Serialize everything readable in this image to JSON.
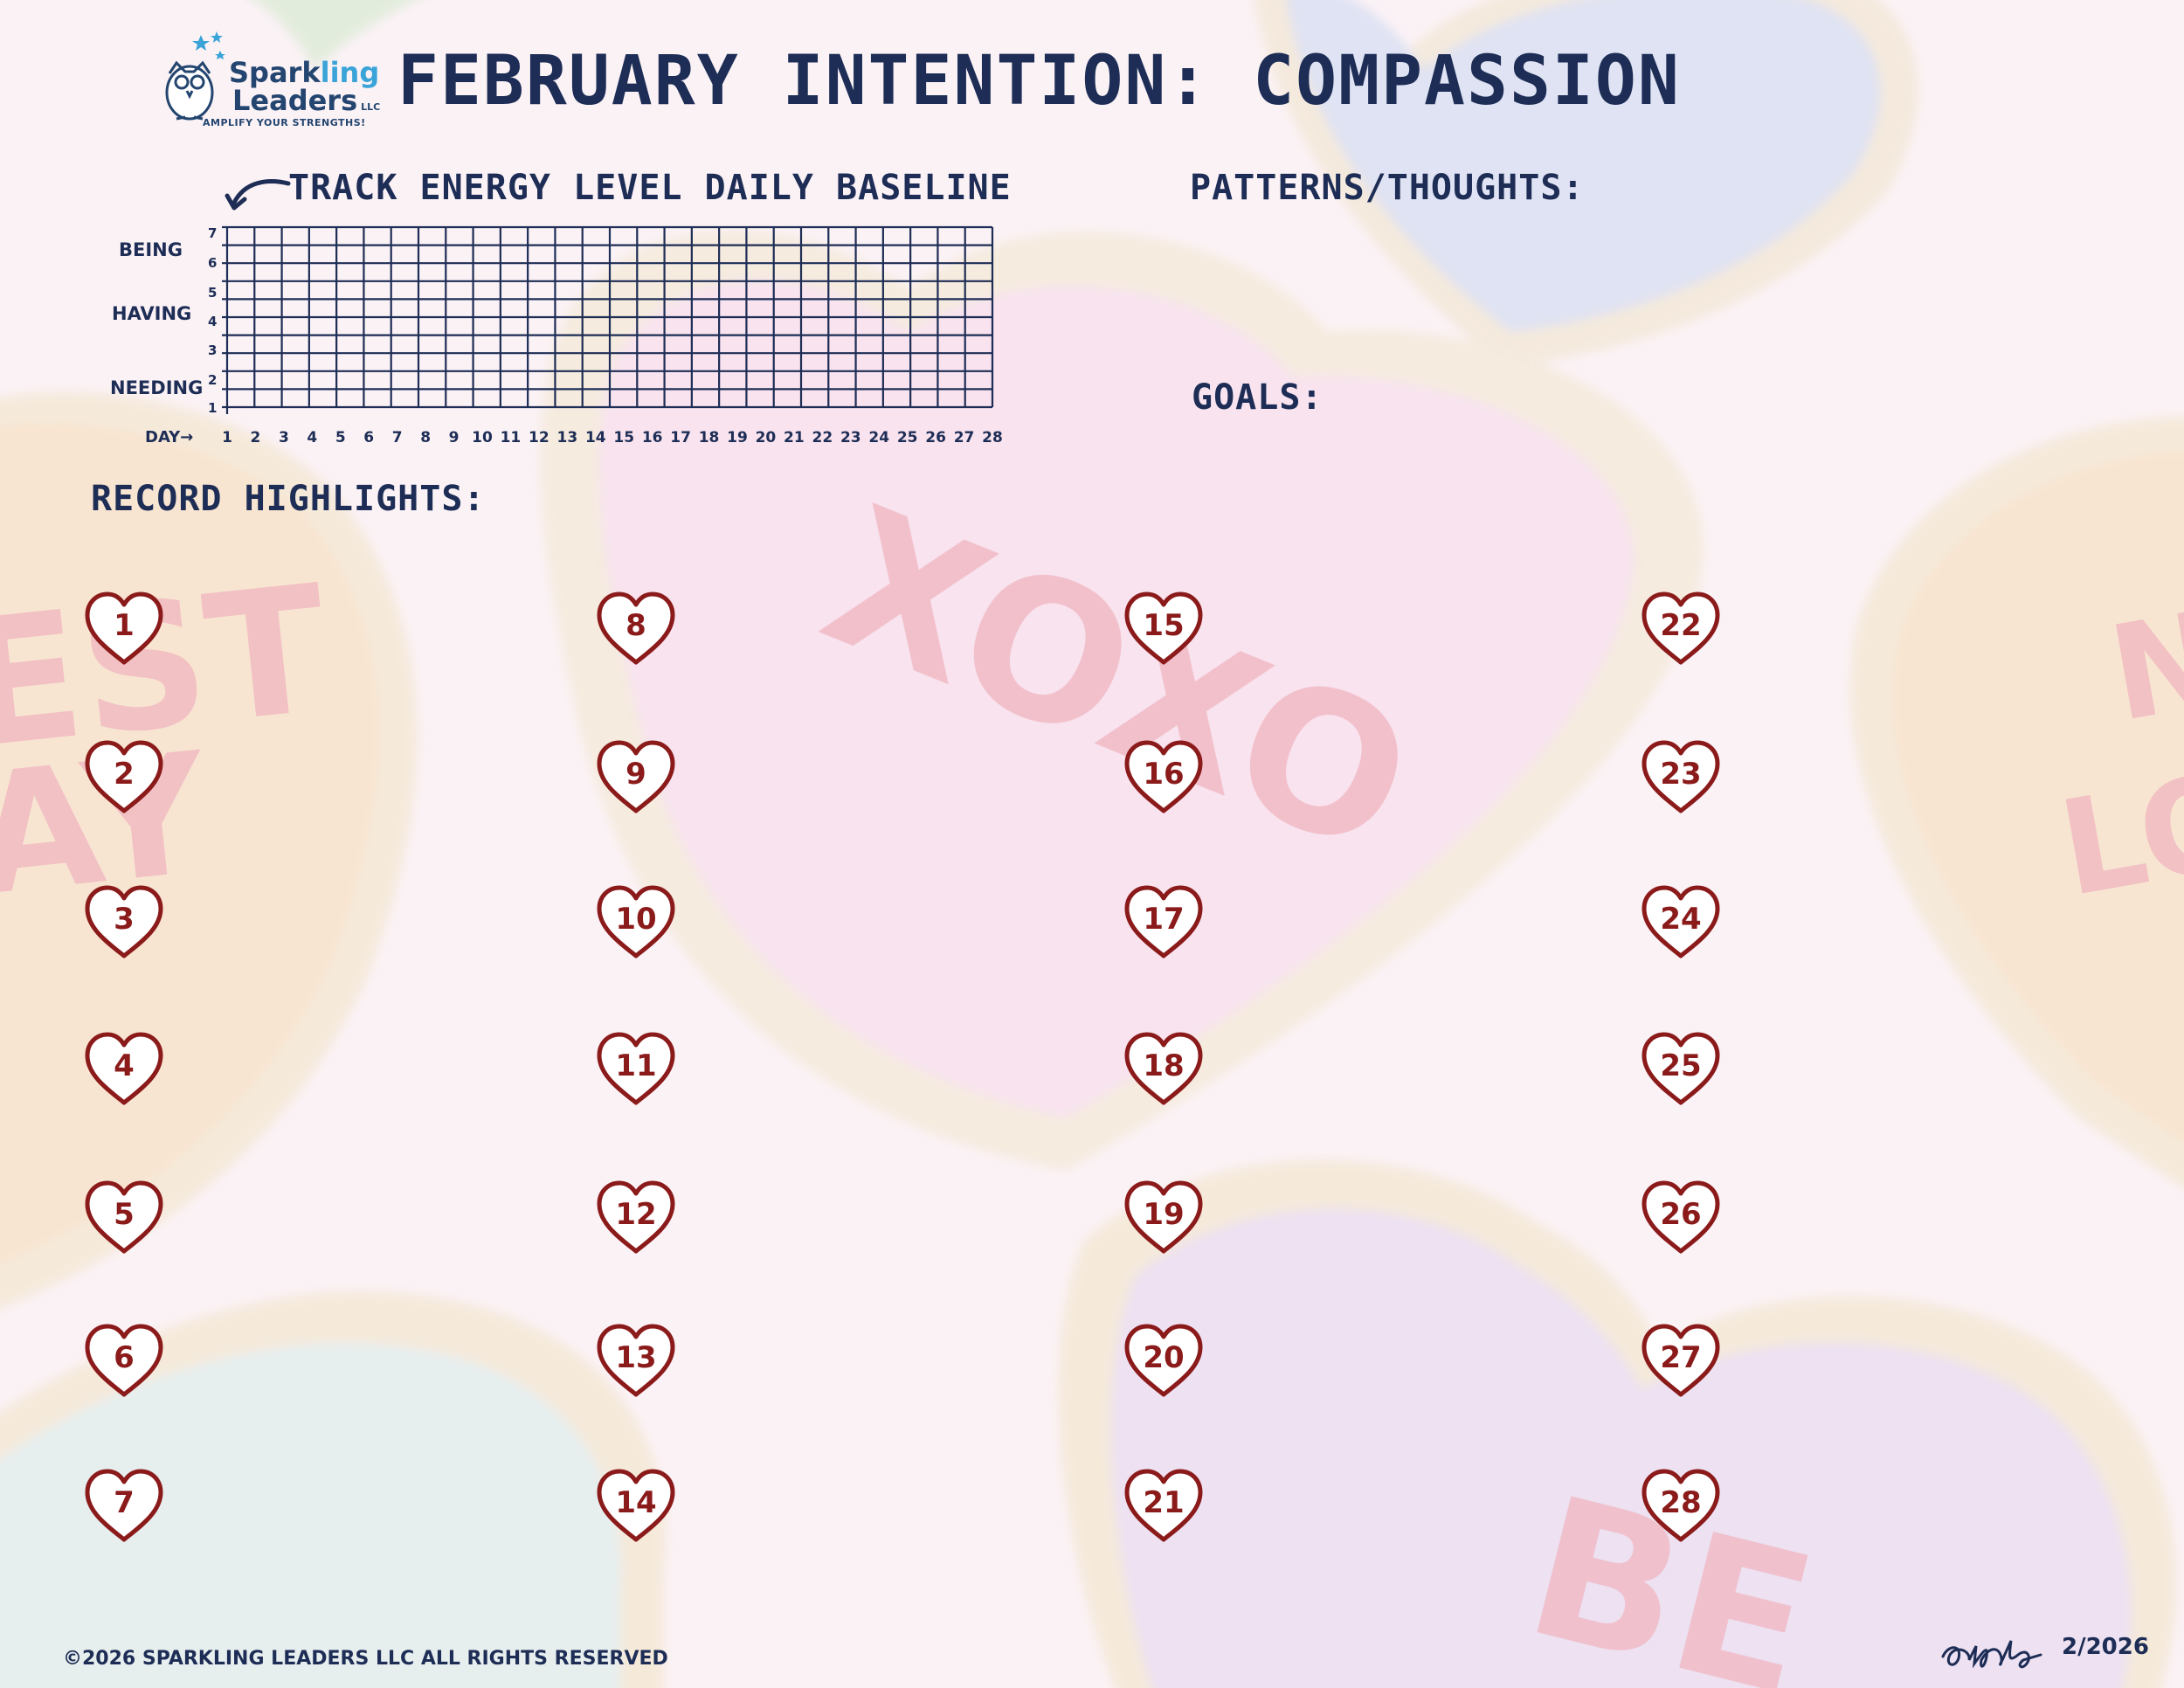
{
  "header": {
    "logo": {
      "word1a": "Spark",
      "word1b": "ling",
      "word2": "Leaders",
      "llc": "LLC",
      "tagline": "AMPLIFY YOUR STRENGTHS!"
    },
    "title": "FEBRUARY INTENTION: COMPASSION"
  },
  "tracker": {
    "heading": "TRACK ENERGY  LEVEL DAILY BASELINE",
    "level_labels": [
      "BEING",
      "HAVING",
      "NEEDING"
    ],
    "day_label": "DAY→",
    "y_ticks": [
      "1",
      "2",
      "3",
      "4",
      "5",
      "6",
      "7"
    ],
    "x_ticks": [
      "1",
      "2",
      "3",
      "4",
      "5",
      "6",
      "7",
      "8",
      "9",
      "10",
      "11",
      "12",
      "13",
      "14",
      "15",
      "16",
      "17",
      "18",
      "19",
      "20",
      "21",
      "22",
      "23",
      "24",
      "25",
      "26",
      "27",
      "28"
    ]
  },
  "patterns_heading": "PATTERNS/THOUGHTS:",
  "goals_heading": "GOALS:",
  "record_heading": "RECORD  HIGHLIGHTS:",
  "days": [
    "1",
    "2",
    "3",
    "4",
    "5",
    "6",
    "7",
    "8",
    "9",
    "10",
    "11",
    "12",
    "13",
    "14",
    "15",
    "16",
    "17",
    "18",
    "19",
    "20",
    "21",
    "22",
    "23",
    "24",
    "25",
    "26",
    "27",
    "28"
  ],
  "background_cookies": {
    "texts": [
      "XOXO",
      "EST",
      "AY",
      "BE",
      "N",
      "LO"
    ]
  },
  "footer": {
    "copyright": "©2026 SPARKLING LEADERS LLC  ALL RIGHTS RESERVED",
    "date": "2/2026"
  },
  "colors": {
    "navy": "#1d2d55",
    "heart": "#8b1a1a",
    "background": "#fbf2f6"
  }
}
